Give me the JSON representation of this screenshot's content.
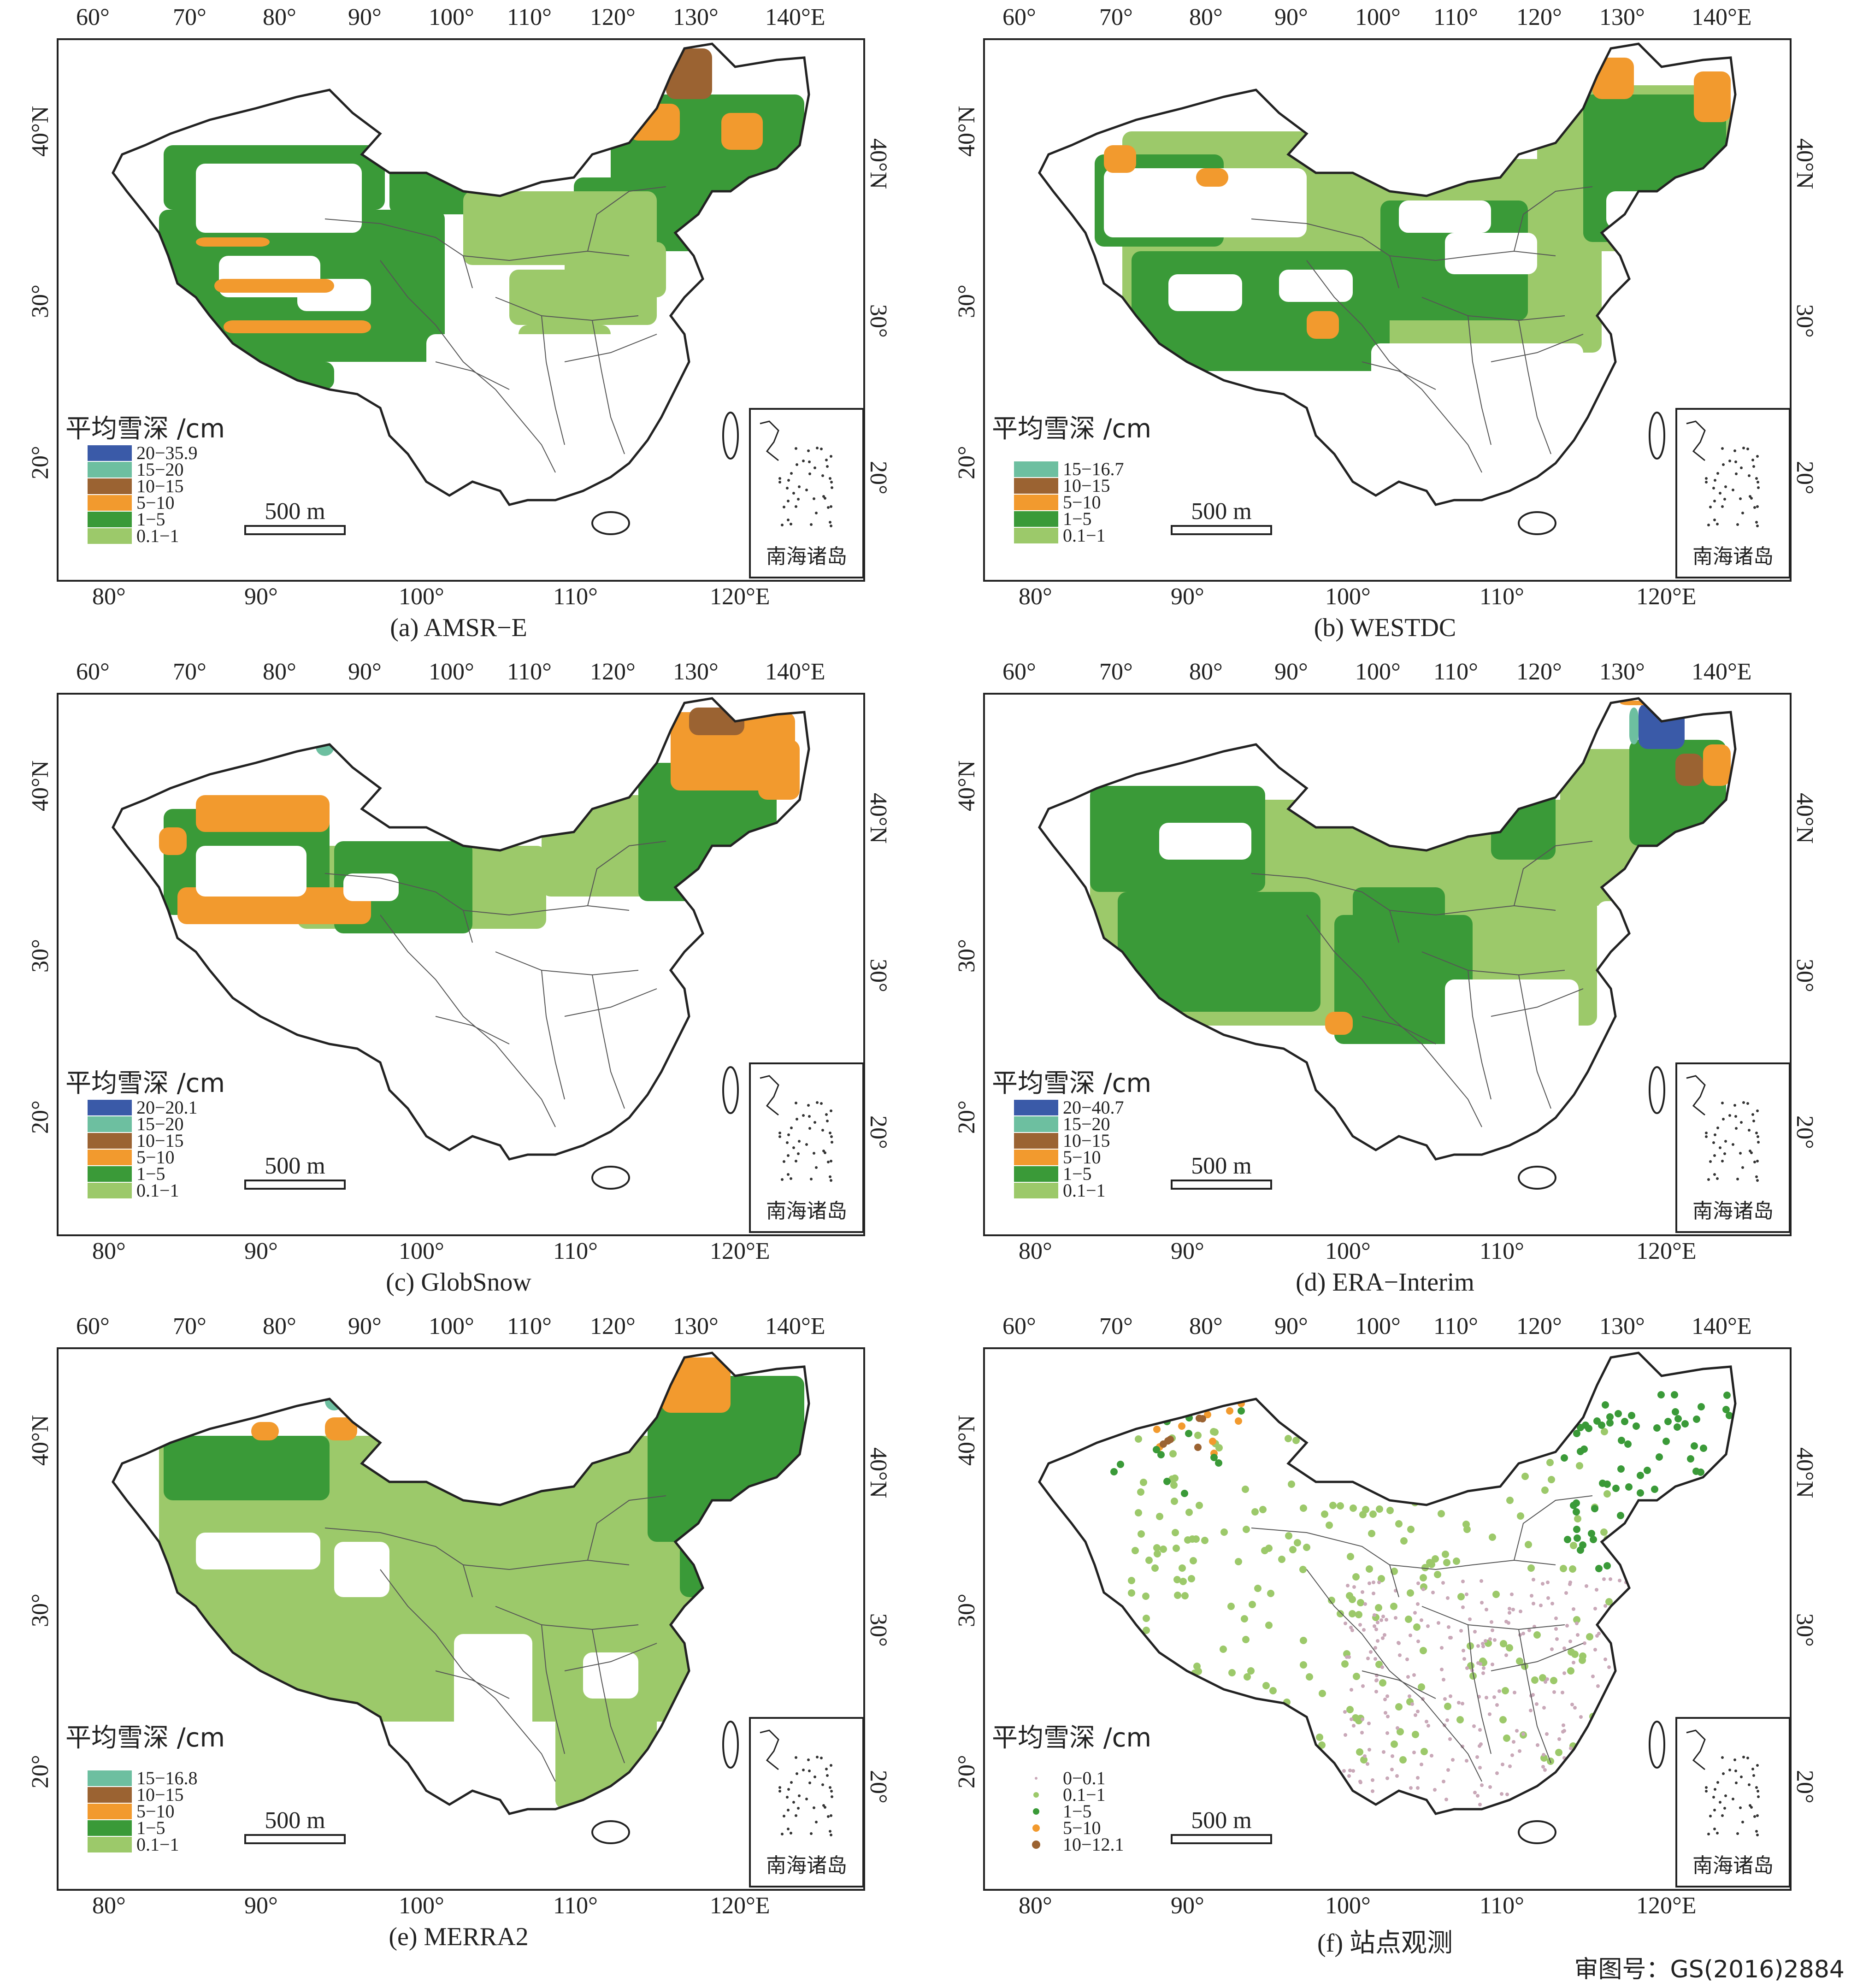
{
  "axes": {
    "top_ticks": [
      "60°",
      "70°",
      "80°",
      "90°",
      "100°",
      "110°",
      "120°",
      "130°",
      "140°E"
    ],
    "bottom_ticks": [
      "80°",
      "90°",
      "100°",
      "110°",
      "120°E"
    ],
    "left_ticks": [
      "40°N",
      "30°",
      "20°"
    ],
    "right_ticks": [
      "40°N",
      "30°",
      "20°"
    ]
  },
  "legend_title": "平均雪深 /cm",
  "scale_label": "500 m",
  "inset_label": "南海诸岛",
  "colors": {
    "dark_blue": "#3a5aa8",
    "teal": "#6dbfa0",
    "brown": "#9b6332",
    "orange": "#f29a2e",
    "green": "#3a9a38",
    "light_green": "#9cc96a",
    "white": "#ffffff"
  },
  "panels": [
    {
      "caption": "(a) AMSR−E",
      "legend": [
        {
          "label": "20−35.9",
          "color": "#3a5aa8"
        },
        {
          "label": "15−20",
          "color": "#6dbfa0"
        },
        {
          "label": "10−15",
          "color": "#9b6332"
        },
        {
          "label": "5−10",
          "color": "#f29a2e"
        },
        {
          "label": "1−5",
          "color": "#3a9a38"
        },
        {
          "label": "0.1−1",
          "color": "#9cc96a"
        }
      ]
    },
    {
      "caption": "(b) WESTDC",
      "legend": [
        {
          "label": "15−16.7",
          "color": "#6dbfa0"
        },
        {
          "label": "10−15",
          "color": "#9b6332"
        },
        {
          "label": "5−10",
          "color": "#f29a2e"
        },
        {
          "label": "1−5",
          "color": "#3a9a38"
        },
        {
          "label": "0.1−1",
          "color": "#9cc96a"
        }
      ]
    },
    {
      "caption": "(c) GlobSnow",
      "legend": [
        {
          "label": "20−20.1",
          "color": "#3a5aa8"
        },
        {
          "label": "15−20",
          "color": "#6dbfa0"
        },
        {
          "label": "10−15",
          "color": "#9b6332"
        },
        {
          "label": "5−10",
          "color": "#f29a2e"
        },
        {
          "label": "1−5",
          "color": "#3a9a38"
        },
        {
          "label": "0.1−1",
          "color": "#9cc96a"
        }
      ]
    },
    {
      "caption": "(d) ERA−Interim",
      "legend": [
        {
          "label": "20−40.7",
          "color": "#3a5aa8"
        },
        {
          "label": "15−20",
          "color": "#6dbfa0"
        },
        {
          "label": "10−15",
          "color": "#9b6332"
        },
        {
          "label": "5−10",
          "color": "#f29a2e"
        },
        {
          "label": "1−5",
          "color": "#3a9a38"
        },
        {
          "label": "0.1−1",
          "color": "#9cc96a"
        }
      ]
    },
    {
      "caption": "(e) MERRA2",
      "legend": [
        {
          "label": "15−16.8",
          "color": "#6dbfa0"
        },
        {
          "label": "10−15",
          "color": "#9b6332"
        },
        {
          "label": "5−10",
          "color": "#f29a2e"
        },
        {
          "label": "1−5",
          "color": "#3a9a38"
        },
        {
          "label": "0.1−1",
          "color": "#9cc96a"
        }
      ]
    },
    {
      "caption": "(f) 站点观测",
      "legend": [
        {
          "label": "0−0.1",
          "color": "#c9a8b8"
        },
        {
          "label": "0.1−1",
          "color": "#9cc96a"
        },
        {
          "label": "1−5",
          "color": "#3a9a38"
        },
        {
          "label": "5−10",
          "color": "#f29a2e"
        },
        {
          "label": "10−12.1",
          "color": "#9b6332"
        }
      ]
    }
  ],
  "approval_number": "审图号：GS(2016)2884"
}
